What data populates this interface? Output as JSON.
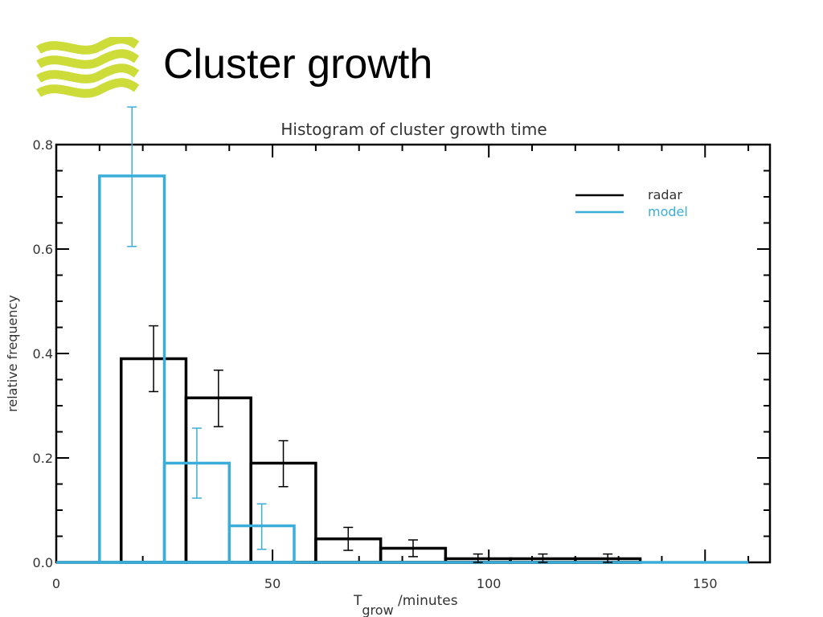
{
  "slide": {
    "title": "Cluster growth",
    "accent_color": "#cddc39",
    "logo_icon": "wave-bands-logo"
  },
  "chart_data": {
    "type": "bar",
    "title": "Histogram of cluster growth time",
    "xlabel_main": "T",
    "xlabel_sub": "grow",
    "xlabel_rest": " /minutes",
    "ylabel": "relative frequency",
    "xlim": [
      0,
      165
    ],
    "ylim": [
      0,
      0.8
    ],
    "x_ticks": [
      0,
      50,
      100,
      150
    ],
    "x_tick_labels": [
      "0",
      "50",
      "100",
      "150"
    ],
    "y_ticks": [
      0.0,
      0.2,
      0.4,
      0.6,
      0.8
    ],
    "y_tick_labels": [
      "0.0",
      "0.2",
      "0.4",
      "0.6",
      "0.8"
    ],
    "legend_position": "top-right",
    "series": [
      {
        "name": "radar",
        "color": "#000000",
        "bin_edges": [
          0,
          15,
          30,
          45,
          60,
          75,
          90,
          105,
          120,
          135
        ],
        "values": [
          0,
          0.39,
          0.315,
          0.19,
          0.045,
          0.027,
          0.007,
          0.007,
          0.007
        ],
        "error_bars": [
          {
            "x": 22.5,
            "low": 0.327,
            "high": 0.453
          },
          {
            "x": 37.5,
            "low": 0.26,
            "high": 0.368
          },
          {
            "x": 52.5,
            "low": 0.145,
            "high": 0.233
          },
          {
            "x": 67.5,
            "low": 0.023,
            "high": 0.067
          },
          {
            "x": 82.5,
            "low": 0.011,
            "high": 0.043
          },
          {
            "x": 97.5,
            "low": 0.0,
            "high": 0.016
          },
          {
            "x": 112.5,
            "low": 0.0,
            "high": 0.016
          },
          {
            "x": 127.5,
            "low": 0.0,
            "high": 0.016
          }
        ]
      },
      {
        "name": "model",
        "color": "#3aaed8",
        "bin_edges": [
          0,
          10,
          25,
          40,
          55,
          160
        ],
        "values": [
          0,
          0.74,
          0.19,
          0.07,
          0
        ],
        "error_bars": [
          {
            "x": 17.5,
            "low": 0.605,
            "high": 0.872
          },
          {
            "x": 32.5,
            "low": 0.123,
            "high": 0.257
          },
          {
            "x": 47.5,
            "low": 0.025,
            "high": 0.112
          }
        ]
      }
    ]
  }
}
